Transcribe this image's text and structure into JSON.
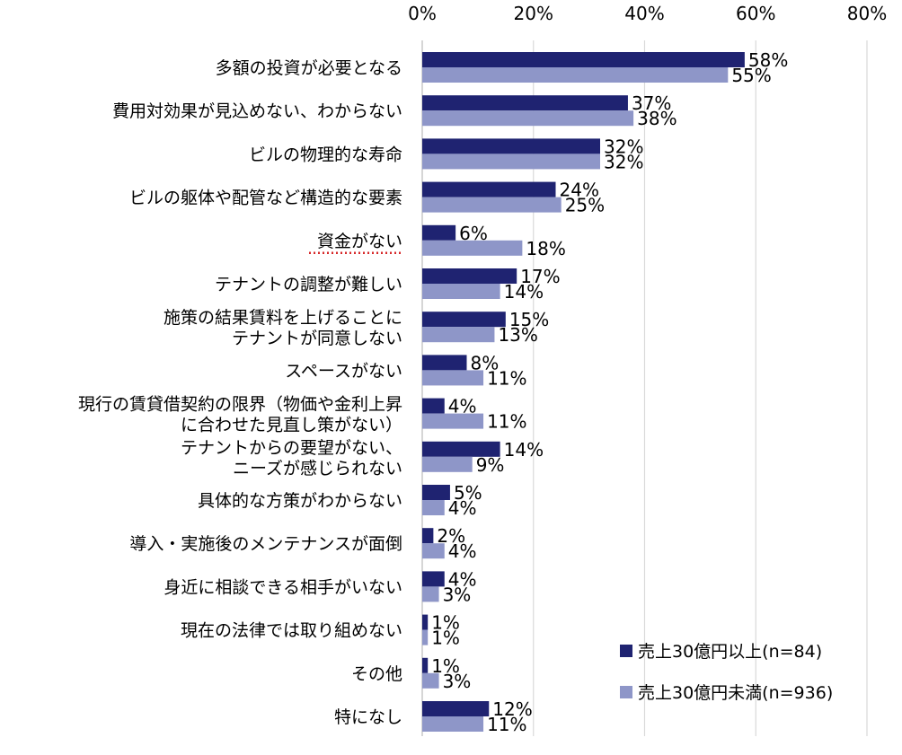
{
  "chart_data": {
    "type": "bar",
    "orientation": "horizontal",
    "xlim": [
      0,
      80
    ],
    "xticks": [
      "0%",
      "20%",
      "40%",
      "60%",
      "80%"
    ],
    "grid": true,
    "legend_position": "bottom-right",
    "categories": [
      [
        "多額の投資が必要となる"
      ],
      [
        "費用対効果が見込めない、わからない"
      ],
      [
        "ビルの物理的な寿命"
      ],
      [
        "ビルの躯体や配管など構造的な要素"
      ],
      [
        "資金がない"
      ],
      [
        "テナントの調整が難しい"
      ],
      [
        "施策の結果賃料を上げることに",
        "テナントが同意しない"
      ],
      [
        "スペースがない"
      ],
      [
        "現行の賃貸借契約の限界（物価や金利上昇",
        "に合わせた見直し策がない）"
      ],
      [
        "テナントからの要望がない、",
        "ニーズが感じられない"
      ],
      [
        "具体的な方策がわからない"
      ],
      [
        "導入・実施後のメンテナンスが面倒"
      ],
      [
        "身近に相談できる相手がいない"
      ],
      [
        "現在の法律では取り組めない"
      ],
      [
        "その他"
      ],
      [
        "特になし"
      ]
    ],
    "series": [
      {
        "name": "売上30億円以上(n=84)",
        "color": "#1f2371",
        "values": [
          58,
          37,
          32,
          24,
          6,
          17,
          15,
          8,
          4,
          14,
          5,
          2,
          4,
          1,
          1,
          12
        ],
        "labels": [
          "58%",
          "37%",
          "32%",
          "24%",
          "6%",
          "17%",
          "15%",
          "8%",
          "4%",
          "14%",
          "5%",
          "2%",
          "4%",
          "1%",
          "1%",
          "12%"
        ]
      },
      {
        "name": "売上30億円未満(n=936)",
        "color": "#8e96c8",
        "values": [
          55,
          38,
          32,
          25,
          18,
          14,
          13,
          11,
          11,
          9,
          4,
          4,
          3,
          1,
          3,
          11
        ],
        "labels": [
          "55%",
          "38%",
          "32%",
          "25%",
          "18%",
          "14%",
          "13%",
          "11%",
          "11%",
          "9%",
          "4%",
          "4%",
          "3%",
          "1%",
          "3%",
          "11%"
        ]
      }
    ],
    "highlighted_category_index": 4,
    "highlight_color": "#d62728"
  }
}
